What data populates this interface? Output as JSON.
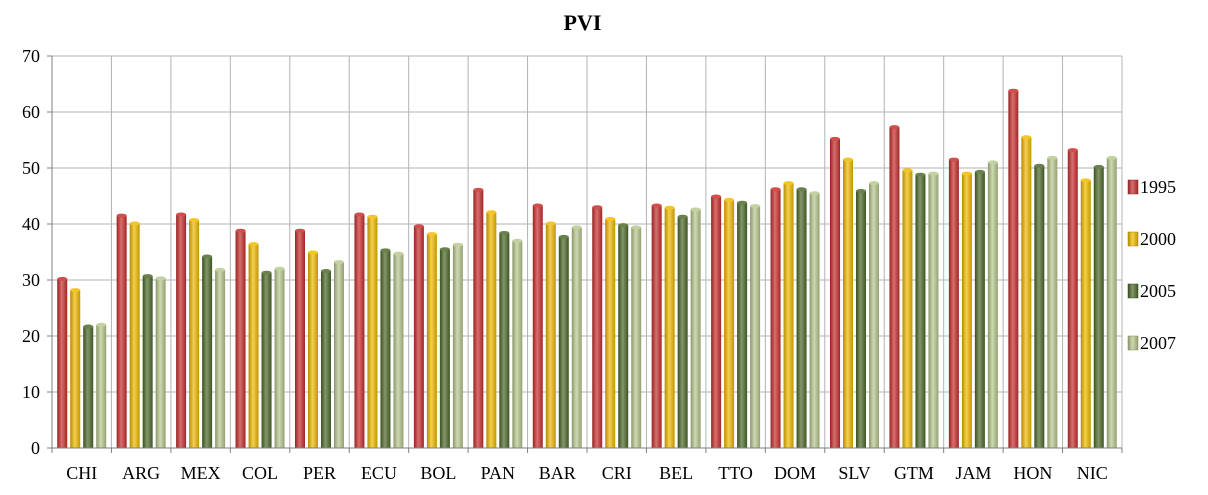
{
  "chart_data": {
    "type": "bar",
    "title": "PVI",
    "xlabel": "",
    "ylabel": "",
    "ylim": [
      0,
      70
    ],
    "yticks": [
      0,
      10,
      20,
      30,
      40,
      50,
      60,
      70
    ],
    "grid": "vertical and horizontal",
    "legend_position": "right",
    "categories": [
      "CHI",
      "ARG",
      "MEX",
      "COL",
      "PER",
      "ECU",
      "BOL",
      "PAN",
      "BAR",
      "CRI",
      "BEL",
      "TTO",
      "DOM",
      "SLV",
      "GTM",
      "JAM",
      "HON",
      "NIC"
    ],
    "series": [
      {
        "name": "1995",
        "color": "#c8302e",
        "values": [
          30.2,
          41.5,
          41.7,
          38.8,
          38.8,
          41.7,
          39.6,
          46.1,
          43.3,
          43.0,
          43.3,
          44.9,
          46.2,
          55.2,
          57.3,
          51.5,
          63.8,
          53.2
        ]
      },
      {
        "name": "2000",
        "color": "#f1bc00",
        "values": [
          28.2,
          40.1,
          40.7,
          36.4,
          34.9,
          41.3,
          38.2,
          42.1,
          40.1,
          40.9,
          42.9,
          44.3,
          47.3,
          51.5,
          49.6,
          49.0,
          55.5,
          47.8
        ]
      },
      {
        "name": "2005",
        "color": "#4e6b2a",
        "values": [
          21.7,
          30.7,
          34.2,
          31.3,
          31.6,
          35.3,
          35.5,
          38.4,
          37.7,
          39.8,
          41.3,
          43.8,
          46.2,
          45.9,
          48.8,
          49.3,
          50.4,
          50.2
        ]
      },
      {
        "name": "2007",
        "color": "#b9c98f",
        "values": [
          22.0,
          30.3,
          31.8,
          32.0,
          33.2,
          34.7,
          36.3,
          37.0,
          39.4,
          39.4,
          42.6,
          43.2,
          45.5,
          47.3,
          49.0,
          51.0,
          51.8,
          51.8
        ]
      }
    ]
  }
}
